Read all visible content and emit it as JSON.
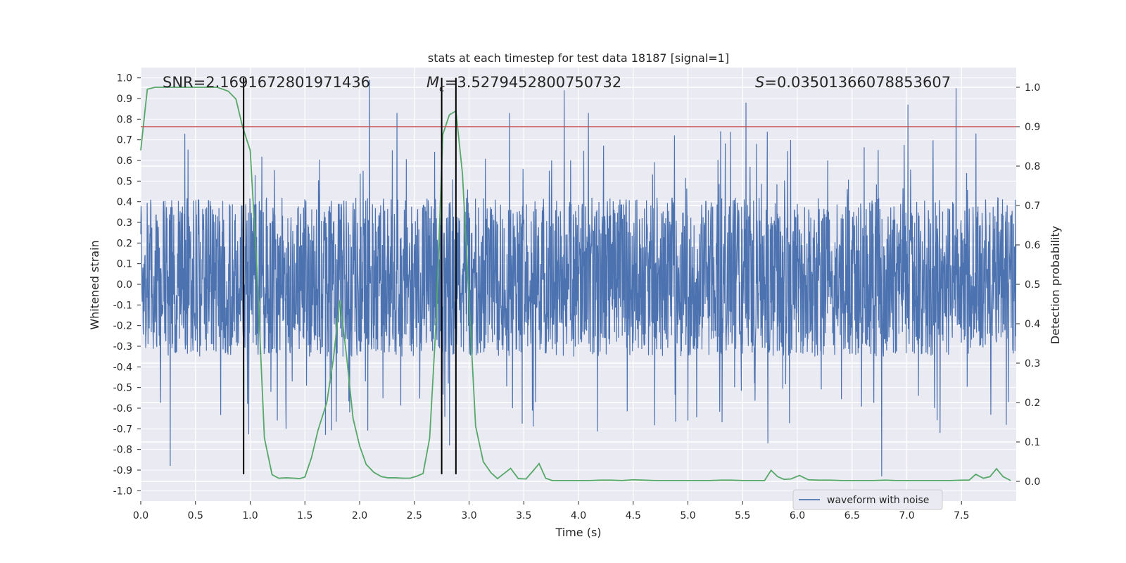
{
  "chart_data": {
    "type": "line",
    "title": "stats at each timestep for test data 18187 [signal=1]",
    "xlabel": "Time (s)",
    "ylabel_left": "Whitened strain",
    "ylabel_right": "Detection probability",
    "xlim": [
      0.0,
      8.0
    ],
    "ylim_left": [
      -1.05,
      1.05
    ],
    "ylim_right": [
      -0.05,
      1.05
    ],
    "xticks": [
      "0.0",
      "0.5",
      "1.0",
      "1.5",
      "2.0",
      "2.5",
      "3.0",
      "3.5",
      "4.0",
      "4.5",
      "5.0",
      "5.5",
      "6.0",
      "6.5",
      "7.0",
      "7.5"
    ],
    "yticks_left": [
      "-1.0",
      "-0.9",
      "-0.8",
      "-0.7",
      "-0.6",
      "-0.5",
      "-0.4",
      "-0.3",
      "-0.2",
      "-0.1",
      "0.0",
      "0.1",
      "0.2",
      "0.3",
      "0.4",
      "0.5",
      "0.6",
      "0.7",
      "0.8",
      "0.9",
      "1.0"
    ],
    "yticks_right": [
      "0.0",
      "0.1",
      "0.2",
      "0.3",
      "0.4",
      "0.5",
      "0.6",
      "0.7",
      "0.8",
      "0.9",
      "1.0"
    ],
    "grid": true,
    "legend_location": "lower-right",
    "annotations": {
      "snr": "SNR=2.1691672801971436",
      "mc_symbol": "M",
      "mc_sub": "c",
      "mc_value": "=3.5279452800750732",
      "s_symbol": "S",
      "s_value": "=0.03501366078853607"
    },
    "series": [
      {
        "name": "waveform with noise",
        "axis": "left",
        "color": "#4c72b0",
        "kind": "noise-waveform",
        "typical_envelope": [
          -0.35,
          0.42
        ],
        "peaks": [
          {
            "x": 0.27,
            "y": -0.88
          },
          {
            "x": 2.09,
            "y": 0.99
          },
          {
            "x": 2.34,
            "y": 0.83
          },
          {
            "x": 2.82,
            "y": -0.78
          },
          {
            "x": 3.37,
            "y": 0.83
          },
          {
            "x": 3.87,
            "y": 0.94
          },
          {
            "x": 4.09,
            "y": 0.83
          },
          {
            "x": 5.53,
            "y": 0.88
          },
          {
            "x": 5.73,
            "y": -0.77
          },
          {
            "x": 6.77,
            "y": -0.93
          },
          {
            "x": 7.01,
            "y": 0.87
          },
          {
            "x": 7.45,
            "y": 0.95
          }
        ]
      },
      {
        "axis": "right",
        "color": "#55a868",
        "x": [
          0.0,
          0.06,
          0.13,
          0.2,
          0.3,
          0.5,
          0.7,
          0.8,
          0.87,
          0.93,
          1.0,
          1.06,
          1.13,
          1.2,
          1.26,
          1.33,
          1.4,
          1.45,
          1.5,
          1.56,
          1.62,
          1.7,
          1.76,
          1.82,
          1.88,
          1.94,
          2.0,
          2.06,
          2.13,
          2.2,
          2.26,
          2.33,
          2.4,
          2.46,
          2.52,
          2.58,
          2.64,
          2.7,
          2.76,
          2.82,
          2.88,
          2.94,
          3.0,
          3.06,
          3.13,
          3.2,
          3.26,
          3.32,
          3.38,
          3.45,
          3.52,
          3.58,
          3.64,
          3.7,
          3.76,
          3.82,
          3.9,
          4.0,
          4.1,
          4.2,
          4.3,
          4.4,
          4.5,
          4.6,
          4.7,
          4.8,
          4.9,
          5.0,
          5.1,
          5.2,
          5.3,
          5.4,
          5.5,
          5.6,
          5.7,
          5.76,
          5.82,
          5.88,
          5.94,
          6.02,
          6.1,
          6.2,
          6.3,
          6.4,
          6.5,
          6.6,
          6.7,
          6.8,
          6.9,
          7.0,
          7.1,
          7.2,
          7.3,
          7.4,
          7.5,
          7.57,
          7.63,
          7.7,
          7.76,
          7.82,
          7.88,
          7.95
        ],
        "values": [
          0.84,
          0.995,
          1.0,
          1.0,
          1.0,
          1.0,
          1.0,
          0.99,
          0.97,
          0.9,
          0.84,
          0.55,
          0.11,
          0.017,
          0.008,
          0.009,
          0.008,
          0.007,
          0.011,
          0.06,
          0.13,
          0.2,
          0.31,
          0.46,
          0.32,
          0.16,
          0.09,
          0.043,
          0.023,
          0.012,
          0.009,
          0.009,
          0.008,
          0.008,
          0.013,
          0.02,
          0.11,
          0.41,
          0.88,
          0.93,
          0.94,
          0.78,
          0.46,
          0.14,
          0.05,
          0.022,
          0.007,
          0.02,
          0.033,
          0.007,
          0.006,
          0.025,
          0.045,
          0.008,
          0.002,
          0.002,
          0.002,
          0.002,
          0.002,
          0.003,
          0.003,
          0.002,
          0.004,
          0.003,
          0.002,
          0.002,
          0.002,
          0.002,
          0.002,
          0.002,
          0.003,
          0.003,
          0.002,
          0.002,
          0.002,
          0.028,
          0.012,
          0.005,
          0.006,
          0.015,
          0.004,
          0.003,
          0.003,
          0.002,
          0.002,
          0.002,
          0.002,
          0.003,
          0.002,
          0.002,
          0.002,
          0.002,
          0.002,
          0.002,
          0.003,
          0.003,
          0.018,
          0.008,
          0.012,
          0.032,
          0.012,
          0.002
        ]
      }
    ],
    "threshold_line": {
      "axis": "right",
      "y": 0.9,
      "color": "#c44e52"
    },
    "vertical_markers": {
      "color": "#000000",
      "x": [
        0.94,
        2.75,
        2.88
      ],
      "y_range": [
        -0.92,
        1.0
      ]
    }
  }
}
